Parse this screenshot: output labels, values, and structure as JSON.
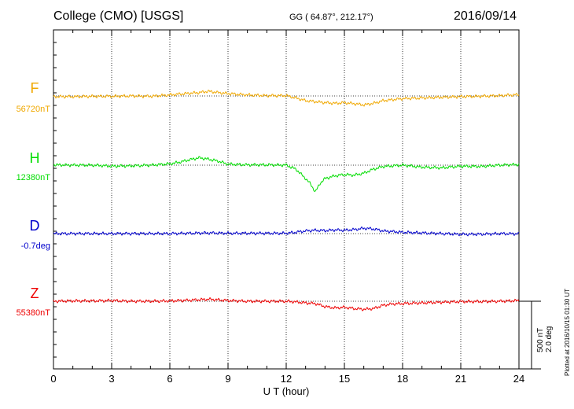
{
  "header": {
    "title": "College (CMO)  [USGS]",
    "coords": "GG ( 64.87°, 212.17°)",
    "date": "2016/09/14"
  },
  "plotted_note": "Plotted at 2016/10/15 01:30 UT",
  "scale_bar": {
    "label1": "500 nT",
    "label2": "2.0 deg"
  },
  "chart_data": {
    "type": "line",
    "xlabel": "U T (hour)",
    "xlim": [
      0,
      24
    ],
    "xticks": [
      "0",
      "3",
      "6",
      "9",
      "12",
      "15",
      "18",
      "21",
      "24"
    ],
    "grid": true,
    "components": [
      {
        "letter": "F",
        "baseline": "56720nT",
        "color": "#f0a800",
        "x": [
          0,
          1,
          2,
          3,
          4,
          5,
          6,
          7,
          7.5,
          8,
          8.5,
          9,
          10,
          11,
          12,
          12.5,
          13,
          13.5,
          14,
          14.5,
          15,
          15.5,
          16,
          16.5,
          17,
          18,
          19,
          20,
          21,
          22,
          23,
          24
        ],
        "y": [
          -10,
          -10,
          -5,
          -5,
          0,
          -5,
          15,
          40,
          50,
          70,
          50,
          35,
          15,
          5,
          5,
          -30,
          -70,
          -85,
          -100,
          -110,
          -100,
          -115,
          -135,
          -110,
          -70,
          -40,
          -30,
          -20,
          -10,
          -5,
          5,
          20
        ]
      },
      {
        "letter": "H",
        "baseline": "12380nT",
        "color": "#00dd00",
        "x": [
          0,
          1,
          2,
          3,
          4,
          5,
          6,
          6.5,
          7,
          7.5,
          8,
          8.5,
          9,
          10,
          11,
          12,
          12.5,
          13,
          13.25,
          13.5,
          13.75,
          14,
          14.5,
          15,
          15.5,
          16,
          16.5,
          17,
          18,
          19,
          20,
          21,
          22,
          23,
          24
        ],
        "y": [
          5,
          0,
          0,
          -15,
          -10,
          0,
          20,
          45,
          80,
          110,
          90,
          60,
          15,
          5,
          5,
          0,
          -60,
          -200,
          -280,
          -400,
          -270,
          -200,
          -160,
          -140,
          -150,
          -120,
          -60,
          -20,
          0,
          -30,
          -40,
          -15,
          -20,
          0,
          10
        ]
      },
      {
        "letter": "D",
        "baseline": "-0.7deg",
        "color": "#0000cc",
        "x": [
          0,
          1,
          2,
          3,
          4,
          5,
          6,
          7,
          8,
          9,
          10,
          11,
          12,
          12.5,
          13,
          13.5,
          14,
          14.5,
          15,
          15.5,
          16,
          16.5,
          17,
          18,
          19,
          20,
          21,
          22,
          23,
          24
        ],
        "y": [
          0,
          0,
          0,
          0,
          0,
          0,
          0,
          5,
          10,
          5,
          5,
          5,
          5,
          20,
          40,
          50,
          45,
          55,
          50,
          60,
          80,
          70,
          40,
          20,
          10,
          0,
          -10,
          -10,
          0,
          -5
        ]
      },
      {
        "letter": "Z",
        "baseline": "55380nT",
        "color": "#ee0000",
        "x": [
          0,
          1,
          2,
          3,
          4,
          5,
          6,
          7,
          8,
          9,
          10,
          11,
          12,
          12.5,
          13,
          13.5,
          14,
          14.5,
          15,
          15.5,
          16,
          16.5,
          17,
          17.5,
          18,
          19,
          20,
          21,
          22,
          23,
          24
        ],
        "y": [
          0,
          5,
          5,
          10,
          0,
          0,
          5,
          15,
          30,
          10,
          0,
          0,
          0,
          -10,
          -25,
          -35,
          -80,
          -100,
          -90,
          -110,
          -120,
          -110,
          -60,
          -40,
          -35,
          -25,
          -15,
          -5,
          -5,
          0,
          10
        ]
      }
    ]
  }
}
